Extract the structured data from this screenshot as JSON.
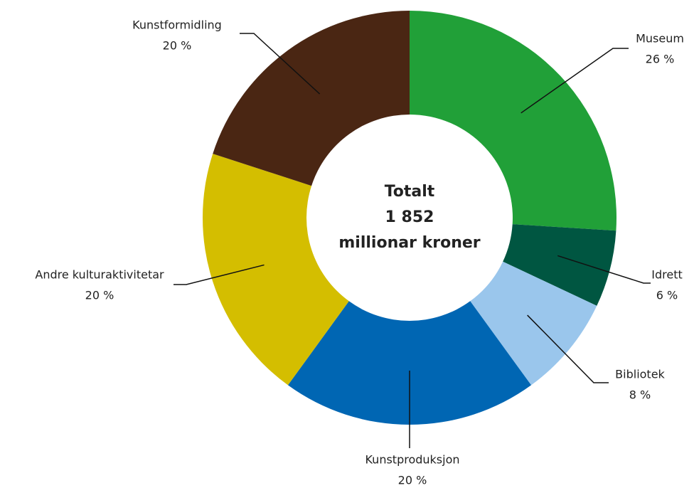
{
  "chart_data": {
    "type": "donut",
    "center_text": [
      "Totalt",
      "1 852",
      "millionar kroner"
    ],
    "categories": [
      "Museum",
      "Idrett",
      "Bibliotek",
      "Kunstproduksjon",
      "Andre kulturaktivitetar",
      "Kunstformidling"
    ],
    "values": [
      26,
      6,
      8,
      20,
      20,
      20
    ],
    "value_labels": [
      "26 %",
      "6 %",
      "8 %",
      "20 %",
      "20 %",
      "20 %"
    ],
    "colors": [
      "#21a038",
      "#005641",
      "#9ac6ec",
      "#0066b3",
      "#d4be00",
      "#4a2613"
    ]
  }
}
